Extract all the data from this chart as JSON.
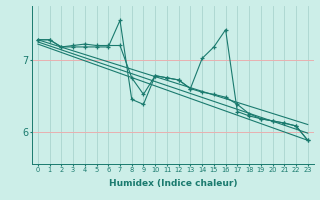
{
  "xlabel": "Humidex (Indice chaleur)",
  "bg_color": "#cceee8",
  "line_color": "#1a7a6e",
  "grid_color": "#aad4ce",
  "red_line_color": "#e8b0b0",
  "x_ticks": [
    0,
    1,
    2,
    3,
    4,
    5,
    6,
    7,
    8,
    9,
    10,
    11,
    12,
    13,
    14,
    15,
    16,
    17,
    18,
    19,
    20,
    21,
    22,
    23
  ],
  "y_ticks": [
    6,
    7
  ],
  "ylim": [
    5.55,
    7.75
  ],
  "xlim": [
    -0.5,
    23.5
  ],
  "trend1_x": [
    0,
    23
  ],
  "trend1_y": [
    7.28,
    6.1
  ],
  "trend2_x": [
    0,
    23
  ],
  "trend2_y": [
    7.25,
    5.98
  ],
  "trend3_x": [
    0,
    23
  ],
  "trend3_y": [
    7.22,
    5.88
  ],
  "data1_x": [
    0,
    1,
    2,
    3,
    4,
    5,
    6,
    7,
    8,
    9,
    10,
    11,
    12,
    13,
    14,
    15,
    16,
    17,
    18,
    19,
    20,
    21,
    22,
    23
  ],
  "data1_y": [
    7.28,
    7.28,
    7.18,
    7.18,
    7.18,
    7.18,
    7.18,
    7.55,
    6.45,
    6.38,
    6.78,
    6.75,
    6.72,
    6.6,
    7.02,
    7.18,
    7.42,
    6.28,
    6.22,
    6.18,
    6.15,
    6.12,
    6.08,
    5.88
  ],
  "data2_x": [
    0,
    1,
    2,
    3,
    4,
    5,
    6,
    7,
    8,
    9,
    10,
    11,
    12,
    13,
    14,
    15,
    16,
    17,
    18,
    19,
    20,
    21,
    22,
    23
  ],
  "data2_y": [
    7.28,
    7.28,
    7.18,
    7.2,
    7.22,
    7.2,
    7.2,
    7.2,
    6.75,
    6.52,
    6.78,
    6.75,
    6.72,
    6.6,
    6.55,
    6.52,
    6.48,
    6.38,
    6.25,
    6.18,
    6.15,
    6.12,
    6.08,
    5.88
  ]
}
